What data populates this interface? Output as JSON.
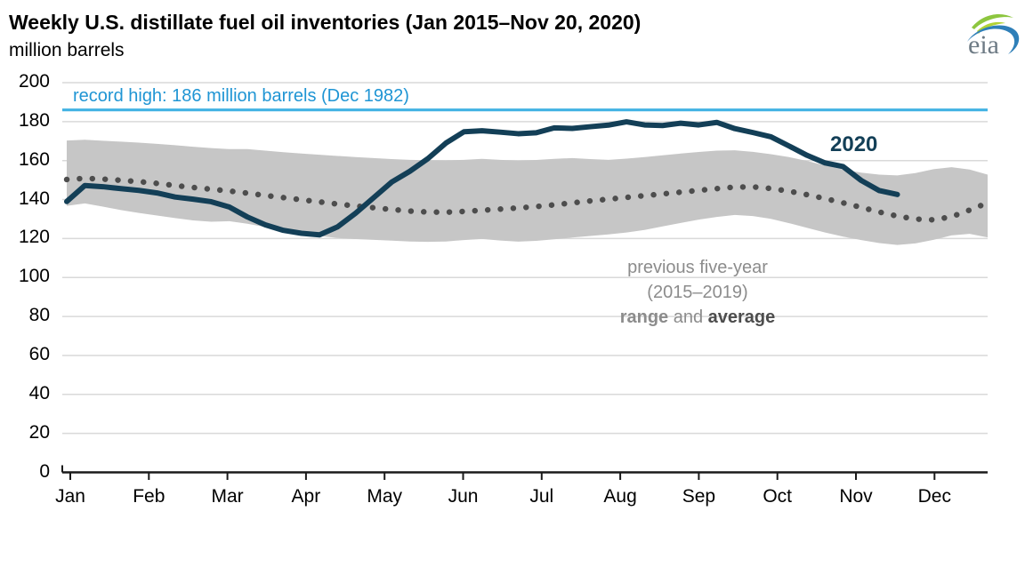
{
  "header": {
    "title": "Weekly U.S. distillate fuel oil inventories (Jan 2015–Nov 20, 2020)",
    "subtitle": "million barrels"
  },
  "logo": {
    "text": "eia"
  },
  "colors": {
    "series_2020": "#133f57",
    "record_line": "#41b2e3",
    "record_text": "#1f95d4",
    "range_band": "#c6c6c6",
    "average_dots": "#4d4d4d",
    "gridline": "#d9d9d9",
    "axis": "#1a1a1a",
    "note_gray": "#8c8c8c",
    "note_dark": "#4d4d4d"
  },
  "annotations": {
    "record_high_label": "record high: 186 million barrels (Dec 1982)",
    "note_line1": "previous five-year",
    "note_line2": "(2015–2019)",
    "note_range": "range",
    "note_and": " and ",
    "note_average": "average",
    "series_label_2020": "2020"
  },
  "chart_data": {
    "type": "line",
    "title": "Weekly U.S. distillate fuel oil inventories (Jan 2015–Nov 20, 2020)",
    "ylabel": "million barrels",
    "xlabel": "",
    "ylim": [
      0,
      200
    ],
    "grid": "horizontal",
    "legend_position": "inline-annotations",
    "y_axis": {
      "ticks": [
        0,
        20,
        40,
        60,
        80,
        100,
        120,
        140,
        160,
        180,
        200
      ]
    },
    "x_axis": {
      "tick_labels": [
        "Jan",
        "Feb",
        "Mar",
        "Apr",
        "May",
        "Jun",
        "Jul",
        "Aug",
        "Sep",
        "Oct",
        "Nov",
        "Dec"
      ]
    },
    "record_high": {
      "value": 186,
      "date": "Dec 1982",
      "label": "record high: 186 million barrels (Dec 1982)"
    },
    "series": [
      {
        "name": "2020",
        "type": "line",
        "color": "#133f57",
        "cadence": "weekly (Jan–Nov 20, 2020)",
        "values": [
          139.0,
          147.2,
          146.6,
          145.6,
          144.7,
          143.4,
          141.3,
          140.2,
          138.9,
          136.2,
          131.1,
          127.0,
          124.2,
          122.7,
          121.9,
          126.0,
          133.0,
          141.0,
          149.0,
          154.5,
          161.0,
          169.0,
          174.8,
          175.3,
          174.6,
          173.8,
          174.3,
          176.8,
          176.5,
          177.4,
          178.2,
          179.9,
          178.3,
          178.0,
          179.2,
          178.3,
          179.6,
          176.4,
          174.4,
          172.2,
          167.5,
          162.7,
          158.8,
          156.9,
          149.8,
          144.6,
          142.6
        ]
      },
      {
        "name": "previous five-year average (2015–2019)",
        "type": "dotted_line",
        "color": "#4d4d4d",
        "cadence": "weekly (full year)",
        "values": [
          150.3,
          150.9,
          150.5,
          149.9,
          149.2,
          148.3,
          147.2,
          146.2,
          145.3,
          144.4,
          143.3,
          142.1,
          141.0,
          139.9,
          138.8,
          137.7,
          136.7,
          135.8,
          134.9,
          134.1,
          133.6,
          133.5,
          133.9,
          134.5,
          135.1,
          135.7,
          136.4,
          137.3,
          138.3,
          139.3,
          140.2,
          141.1,
          142.0,
          142.9,
          143.8,
          144.7,
          145.6,
          146.4,
          146.5,
          145.7,
          144.3,
          142.5,
          140.5,
          138.3,
          136.0,
          133.6,
          131.5,
          130.0,
          129.6,
          131.2,
          134.6,
          138.3
        ]
      },
      {
        "name": "previous five-year range (2015–2019)",
        "type": "band",
        "color": "#c6c6c6",
        "cadence": "weekly (full year)",
        "top": [
          170.3,
          170.7,
          170.2,
          169.7,
          169.2,
          168.6,
          167.9,
          167.1,
          166.4,
          165.9,
          165.9,
          165.1,
          164.3,
          163.6,
          163.0,
          162.4,
          161.8,
          161.3,
          160.8,
          160.4,
          160.2,
          160.1,
          160.4,
          160.9,
          160.4,
          160.0,
          160.3,
          160.9,
          161.3,
          160.8,
          160.4,
          161.0,
          161.8,
          162.7,
          163.6,
          164.4,
          165.1,
          165.3,
          164.5,
          163.3,
          161.8,
          159.8,
          157.5,
          155.4,
          153.8,
          152.8,
          152.4,
          153.6,
          155.6,
          156.6,
          155.4,
          152.8
        ],
        "bottom": [
          136.8,
          138.0,
          136.4,
          134.6,
          133.1,
          131.8,
          130.5,
          129.3,
          128.6,
          128.9,
          127.6,
          125.9,
          124.1,
          122.5,
          121.3,
          120.3,
          119.7,
          119.3,
          118.9,
          118.5,
          118.3,
          118.5,
          119.2,
          119.8,
          119.0,
          118.4,
          118.8,
          119.6,
          120.5,
          121.3,
          122.1,
          123.1,
          124.4,
          126.2,
          128.0,
          129.7,
          131.1,
          132.1,
          131.5,
          130.1,
          127.9,
          125.5,
          123.1,
          121.0,
          119.2,
          117.7,
          116.7,
          117.5,
          119.3,
          121.6,
          122.4,
          120.6
        ]
      }
    ]
  }
}
